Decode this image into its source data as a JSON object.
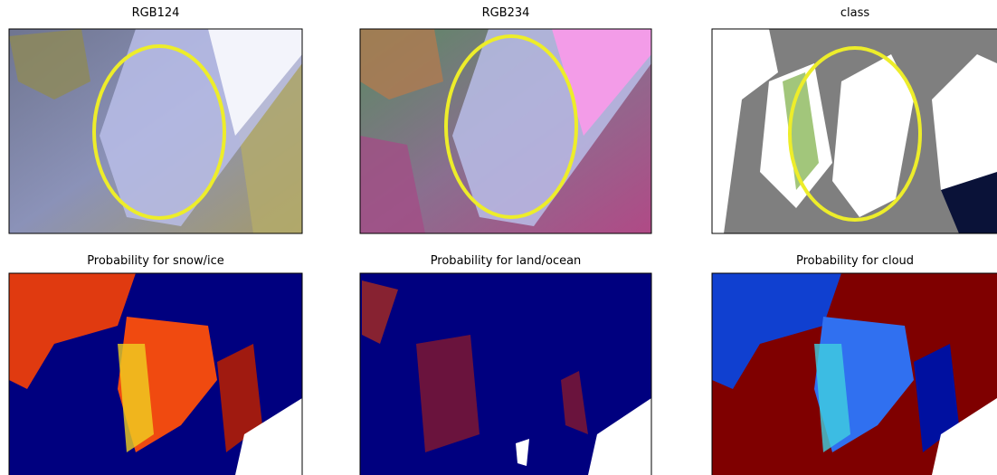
{
  "panels": [
    {
      "title": "RGB124"
    },
    {
      "title": "RGB234"
    },
    {
      "title": "class"
    },
    {
      "title": "Probability for snow/ice"
    },
    {
      "title": "Probability for land/ocean"
    },
    {
      "title": "Probability for cloud"
    }
  ]
}
